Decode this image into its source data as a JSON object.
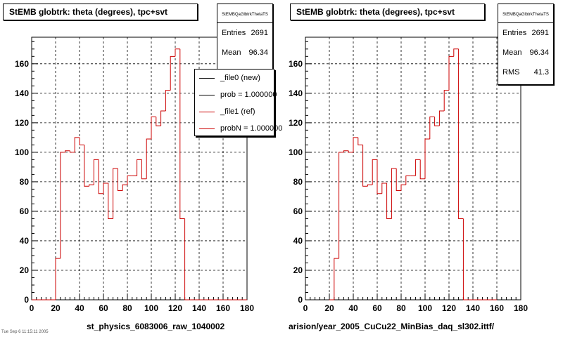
{
  "chart_data": [
    {
      "type": "histogram",
      "title": "StEMB globtrk: theta (degrees), tpc+svt",
      "xlabel": "",
      "ylabel": "",
      "xlim": [
        0,
        180
      ],
      "ylim": [
        0,
        178
      ],
      "xticks": [
        0,
        20,
        40,
        60,
        80,
        100,
        120,
        140,
        160,
        180
      ],
      "yticks": [
        0,
        20,
        40,
        60,
        80,
        100,
        120,
        140,
        160
      ],
      "grid": true,
      "series": [
        {
          "color": "#cc0000",
          "bin_width": 4,
          "x": [
            0,
            4,
            8,
            12,
            16,
            20,
            24,
            28,
            32,
            36,
            40,
            44,
            48,
            52,
            56,
            60,
            64,
            68,
            72,
            76,
            80,
            84,
            88,
            92,
            96,
            100,
            104,
            108,
            112,
            116,
            120,
            124,
            128,
            132,
            136,
            140,
            144,
            148,
            152,
            156,
            160,
            164,
            168,
            172,
            176
          ],
          "values": [
            0,
            0,
            0,
            0,
            0,
            28,
            100,
            101,
            100,
            110,
            105,
            77,
            78,
            95,
            72,
            79,
            55,
            89,
            74,
            78,
            84,
            84,
            95,
            82,
            109,
            124,
            118,
            128,
            142,
            165,
            170,
            55,
            0,
            0,
            0,
            0,
            0,
            0,
            0,
            0,
            0,
            0,
            0,
            0,
            0
          ]
        }
      ],
      "stats": {
        "name": "StEMBQaGlbtrkThetaTS",
        "entries_label": "Entries",
        "entries": "2691",
        "mean_label": "Mean",
        "mean": "96.34"
      },
      "legend": {
        "position": "top-right",
        "entries": [
          {
            "label": "_file0 (new)",
            "color": "#000000"
          },
          {
            "label": "prob = 1.000000",
            "color": "#000000"
          },
          {
            "label": "_file1 (ref)",
            "color": "#cc0000"
          },
          {
            "label": "probN = 1.000000",
            "color": "#cc0000"
          }
        ]
      },
      "bottom_label": "st_physics_6083006_raw_1040002"
    },
    {
      "type": "histogram",
      "title": "StEMB globtrk: theta (degrees), tpc+svt",
      "xlabel": "",
      "ylabel": "",
      "xlim": [
        0,
        180
      ],
      "ylim": [
        0,
        178
      ],
      "xticks": [
        0,
        20,
        40,
        60,
        80,
        100,
        120,
        140,
        160,
        180
      ],
      "yticks": [
        0,
        20,
        40,
        60,
        80,
        100,
        120,
        140,
        160
      ],
      "grid": true,
      "series": [
        {
          "color": "#cc0000",
          "bin_width": 4,
          "x": [
            20,
            24,
            28,
            32,
            36,
            40,
            44,
            48,
            52,
            56,
            60,
            64,
            68,
            72,
            76,
            80,
            84,
            88,
            92,
            96,
            100,
            104,
            108,
            112,
            116,
            120,
            124,
            128,
            132,
            136,
            140,
            144,
            148,
            152,
            156
          ],
          "values": [
            0,
            28,
            100,
            101,
            100,
            110,
            105,
            77,
            78,
            95,
            72,
            79,
            55,
            89,
            74,
            78,
            84,
            84,
            95,
            82,
            109,
            124,
            118,
            128,
            142,
            165,
            170,
            55,
            0,
            0,
            0,
            0,
            0,
            0,
            0
          ]
        }
      ],
      "stats": {
        "name": "StEMBQaGlbtrkThetaTS",
        "entries_label": "Entries",
        "entries": "2691",
        "mean_label": "Mean",
        "mean": "96.34",
        "rms_label": "RMS",
        "rms": "41.3"
      },
      "bottom_label": "arision/year_2005_CuCu22_MinBias_daq_sl302.ittf/"
    }
  ],
  "footer": {
    "corner_text": "Tue Sep  6 11:15:11 2005"
  }
}
